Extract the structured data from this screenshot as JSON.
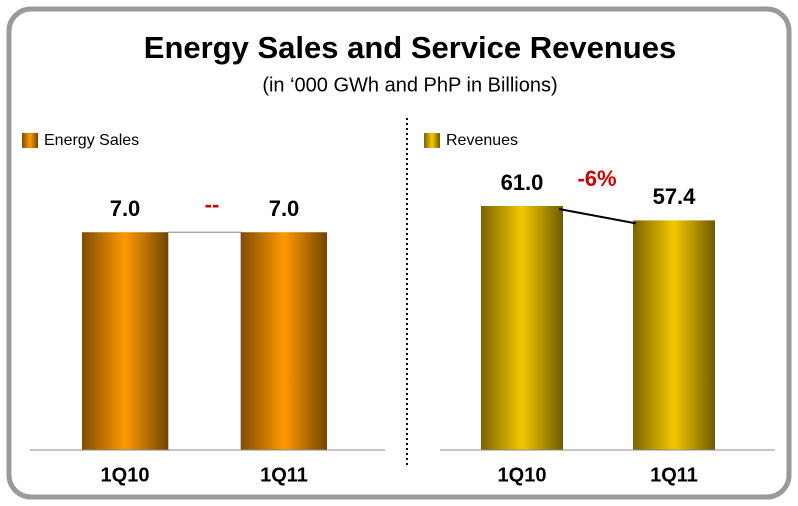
{
  "title": "Energy Sales and Service Revenues",
  "subtitle": "(in ‘000 GWh and PhP in Billions)",
  "chart_data": [
    {
      "type": "bar",
      "categories": [
        "1Q10",
        "1Q11"
      ],
      "series": [
        {
          "name": "Energy Sales",
          "color": "#ff9900",
          "values": [
            7.0,
            7.0
          ],
          "value_labels": [
            "7.0",
            "7.0"
          ]
        }
      ],
      "annotation": "--",
      "ylim": [
        0,
        9
      ]
    },
    {
      "type": "bar",
      "categories": [
        "1Q10",
        "1Q11"
      ],
      "series": [
        {
          "name": "Revenues",
          "color": "#f5c800",
          "values": [
            61.0,
            57.4
          ],
          "value_labels": [
            "61.0",
            "57.4"
          ]
        }
      ],
      "annotation": "-6%",
      "ylim": [
        0,
        70
      ]
    }
  ]
}
